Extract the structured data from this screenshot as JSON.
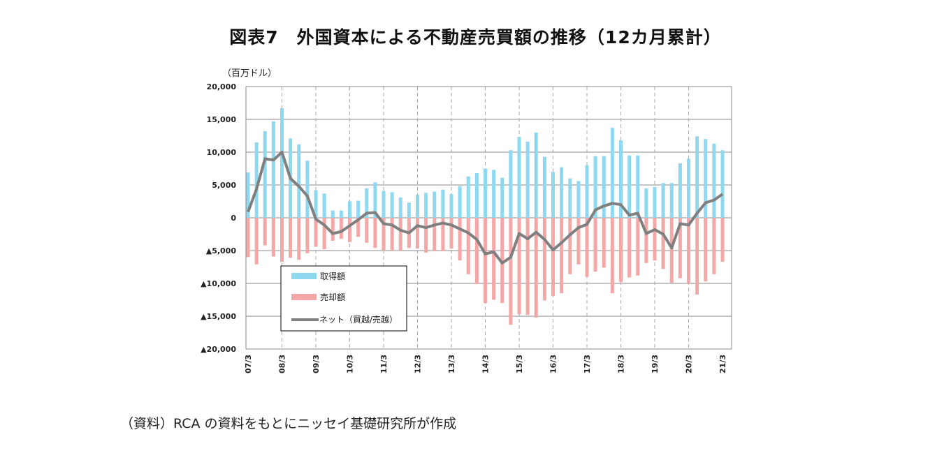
{
  "chart_data": {
    "type": "bar+line",
    "title": "図表7　外国資本による不動産売買額の推移（12カ月累計）",
    "ylabel": "（百万ドル）",
    "ylim": [
      -20000,
      20000
    ],
    "ytick_values": [
      20000,
      15000,
      10000,
      5000,
      0,
      -5000,
      -10000,
      -15000,
      -20000
    ],
    "ytick_labels": [
      "20,000",
      "15,000",
      "10,000",
      "5,000",
      "0",
      "▲5,000",
      "▲10,000",
      "▲15,000",
      "▲20,000"
    ],
    "xtick_labels": [
      "07/3",
      "08/3",
      "09/3",
      "10/3",
      "11/3",
      "12/3",
      "13/3",
      "14/3",
      "15/3",
      "16/3",
      "17/3",
      "18/3",
      "19/3",
      "20/3",
      "21/3"
    ],
    "grid": "horizontal solid, vertical dashed at year ticks",
    "legend_position": "lower-left inside",
    "series": [
      {
        "name": "取得額",
        "kind": "bar",
        "color": "#8ed8f0",
        "values": [
          6900,
          11500,
          13200,
          14700,
          16700,
          12100,
          11200,
          8700,
          4200,
          3700,
          1100,
          1100,
          2500,
          2600,
          4500,
          5400,
          4100,
          3900,
          3100,
          2300,
          3500,
          3800,
          4000,
          4300,
          3600,
          4800,
          6300,
          6800,
          7500,
          7300,
          6100,
          10300,
          12300,
          11600,
          13000,
          9300,
          7000,
          7700,
          6000,
          5600,
          8000,
          9400,
          9400,
          13700,
          11800,
          9500,
          9500,
          4500,
          4700,
          5300,
          5300,
          8300,
          9000,
          12400,
          12000,
          11300,
          10300
        ]
      },
      {
        "name": "売却額",
        "kind": "bar",
        "color": "#f4a7a7",
        "values": [
          -6000,
          -7100,
          -4200,
          -5900,
          -6700,
          -6100,
          -6400,
          -5400,
          -4400,
          -4800,
          -3500,
          -3200,
          -3700,
          -2900,
          -3800,
          -4600,
          -5000,
          -5000,
          -5000,
          -4600,
          -4700,
          -5300,
          -5100,
          -5100,
          -4700,
          -6500,
          -8600,
          -10100,
          -13000,
          -12500,
          -13000,
          -16300,
          -14700,
          -14800,
          -15200,
          -12600,
          -11900,
          -11500,
          -8600,
          -7100,
          -9000,
          -8200,
          -7600,
          -11500,
          -9800,
          -9100,
          -8800,
          -6900,
          -6500,
          -7800,
          -9900,
          -9200,
          -10100,
          -11700,
          -9700,
          -8600,
          -6700
        ]
      },
      {
        "name": "ネット（買越/売越）",
        "kind": "line",
        "color": "#7f7f7f",
        "values": [
          900,
          4400,
          9000,
          8800,
          10000,
          6000,
          4800,
          3300,
          -200,
          -1100,
          -2400,
          -2100,
          -1200,
          -300,
          700,
          800,
          -900,
          -1100,
          -1900,
          -2300,
          -1200,
          -1500,
          -1100,
          -800,
          -1100,
          -1700,
          -2300,
          -3300,
          -5500,
          -5200,
          -6900,
          -6000,
          -2400,
          -3200,
          -2200,
          -3300,
          -4900,
          -3800,
          -2600,
          -1500,
          -1000,
          1200,
          1800,
          2200,
          2000,
          400,
          700,
          -2400,
          -1800,
          -2500,
          -4600,
          -900,
          -1100,
          700,
          2300,
          2700,
          3600
        ]
      }
    ]
  },
  "footer": "（資料）RCA の資料をもとにニッセイ基礎研究所が作成"
}
